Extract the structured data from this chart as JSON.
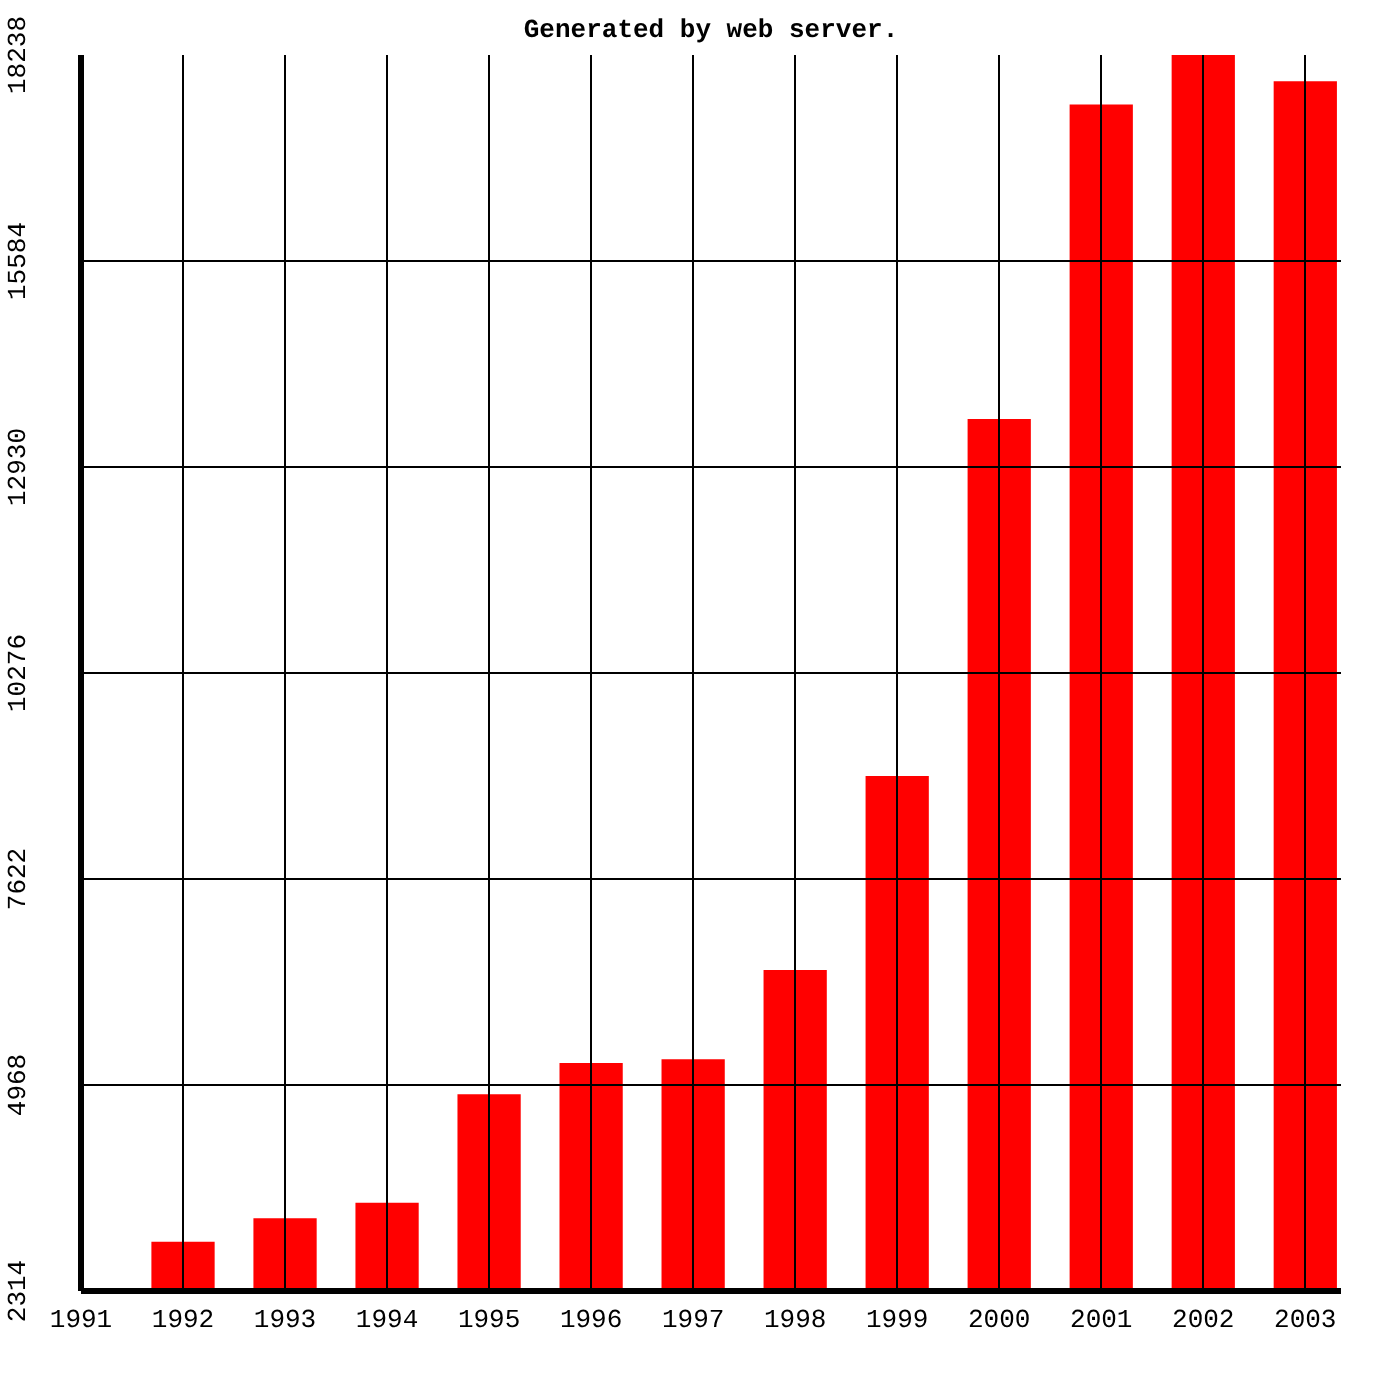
{
  "chart_data": {
    "type": "bar",
    "title": "Generated by web server.",
    "x": [
      1992,
      1993,
      1994,
      1995,
      1996,
      1997,
      1998,
      1999,
      2000,
      2001,
      2002,
      2003
    ],
    "values": [
      2950,
      3250,
      3450,
      4850,
      5250,
      5300,
      6450,
      8950,
      13550,
      17600,
      18238,
      17900
    ],
    "color": "#ff0000",
    "xlim": [
      1991,
      2003.35
    ],
    "xticks": [
      1991,
      1992,
      1993,
      1994,
      1995,
      1996,
      1997,
      1998,
      1999,
      2000,
      2001,
      2002,
      2003
    ],
    "ylim": [
      2314,
      18238
    ],
    "yticks": [
      2314,
      4968,
      7622,
      10276,
      12930,
      15584,
      18238
    ],
    "grid": true
  }
}
